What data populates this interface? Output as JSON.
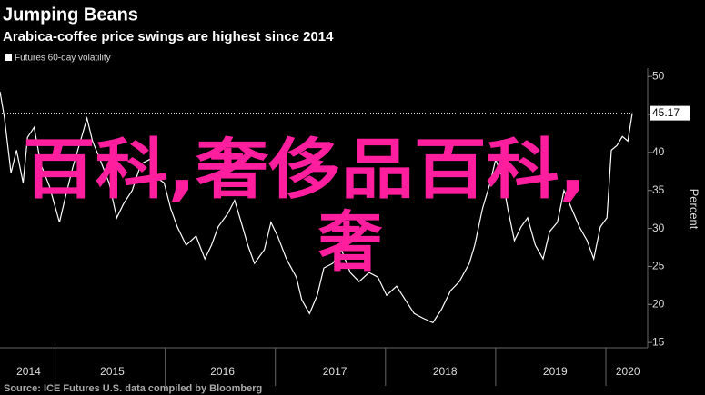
{
  "chart_data": {
    "type": "line",
    "title": "Jumping Beans",
    "subtitle": "Arabica-coffee price swings are highest since 2014",
    "y_axis_label": "Percent",
    "source": "Source: ICE Futures U.S. data compiled by Bloomberg",
    "overlay_text": [
      "百科,奢侈品百科,",
      "奢"
    ],
    "x": [
      2014.5,
      2014.54,
      2014.6,
      2014.65,
      2014.71,
      2014.75,
      2014.81,
      2014.87,
      2014.95,
      2015.04,
      2015.1,
      2015.16,
      2015.24,
      2015.29,
      2015.34,
      2015.41,
      2015.49,
      2015.56,
      2015.62,
      2015.7,
      2015.78,
      2015.86,
      2015.92,
      2015.99,
      2016.05,
      2016.11,
      2016.19,
      2016.28,
      2016.36,
      2016.42,
      2016.48,
      2016.57,
      2016.63,
      2016.69,
      2016.75,
      2016.81,
      2016.9,
      2016.96,
      2017.02,
      2017.1,
      2017.19,
      2017.24,
      2017.31,
      2017.38,
      2017.44,
      2017.52,
      2017.6,
      2017.68,
      2017.76,
      2017.85,
      2017.93,
      2018.01,
      2018.1,
      2018.18,
      2018.26,
      2018.34,
      2018.43,
      2018.51,
      2018.59,
      2018.67,
      2018.76,
      2018.81,
      2018.88,
      2018.95,
      2019.0,
      2019.06,
      2019.11,
      2019.17,
      2019.23,
      2019.29,
      2019.36,
      2019.43,
      2019.49,
      2019.56,
      2019.62,
      2019.69,
      2019.76,
      2019.83,
      2019.89,
      2019.95,
      2020.01,
      2020.05,
      2020.1,
      2020.15,
      2020.2,
      2020.24
    ],
    "series": [
      {
        "name": "Futures 60-day volatility",
        "color": "#ffffff",
        "values": [
          48,
          44.6,
          37.3,
          40.3,
          36,
          42,
          43.3,
          38.5,
          35.5,
          30.8,
          34.5,
          38,
          42,
          44.5,
          41.5,
          39,
          36,
          31.4,
          33.2,
          35,
          38.5,
          39.1,
          36.7,
          36,
          32.6,
          30.2,
          27.8,
          29,
          26,
          27.8,
          30.2,
          32,
          33.7,
          30.8,
          27.8,
          25.4,
          27.2,
          30.8,
          29,
          26,
          23.6,
          20.6,
          18.8,
          21.2,
          24.8,
          25.4,
          27.2,
          24.2,
          23,
          24.2,
          23.6,
          21.2,
          22.4,
          20.6,
          18.8,
          18.2,
          17.6,
          19.4,
          21.8,
          23,
          25.4,
          27.8,
          32.6,
          36,
          39.1,
          36.7,
          32.6,
          28.4,
          30.2,
          31.4,
          27.8,
          26,
          29.6,
          30.8,
          35,
          32.6,
          30.2,
          28.4,
          26,
          30.2,
          31.4,
          40.3,
          40.9,
          42.1,
          41.5,
          45.17
        ]
      }
    ],
    "xlim": [
      2014.5,
      2020.38
    ],
    "xticks": [
      2015,
      2016,
      2017,
      2018,
      2019,
      2020
    ],
    "x_labels": [
      {
        "value": 2014.76,
        "label": "2014"
      },
      {
        "value": 2015.52,
        "label": "2015"
      },
      {
        "value": 2016.52,
        "label": "2016"
      },
      {
        "value": 2017.54,
        "label": "2017"
      },
      {
        "value": 2018.54,
        "label": "2018"
      },
      {
        "value": 2019.54,
        "label": "2019"
      },
      {
        "value": 2020.2,
        "label": "2020"
      }
    ],
    "ylim": [
      14.3,
      51.1
    ],
    "yticks": [
      15,
      20,
      25,
      30,
      35,
      40,
      45,
      50
    ],
    "grid": false,
    "overlay_color": "#ff1f9e"
  }
}
